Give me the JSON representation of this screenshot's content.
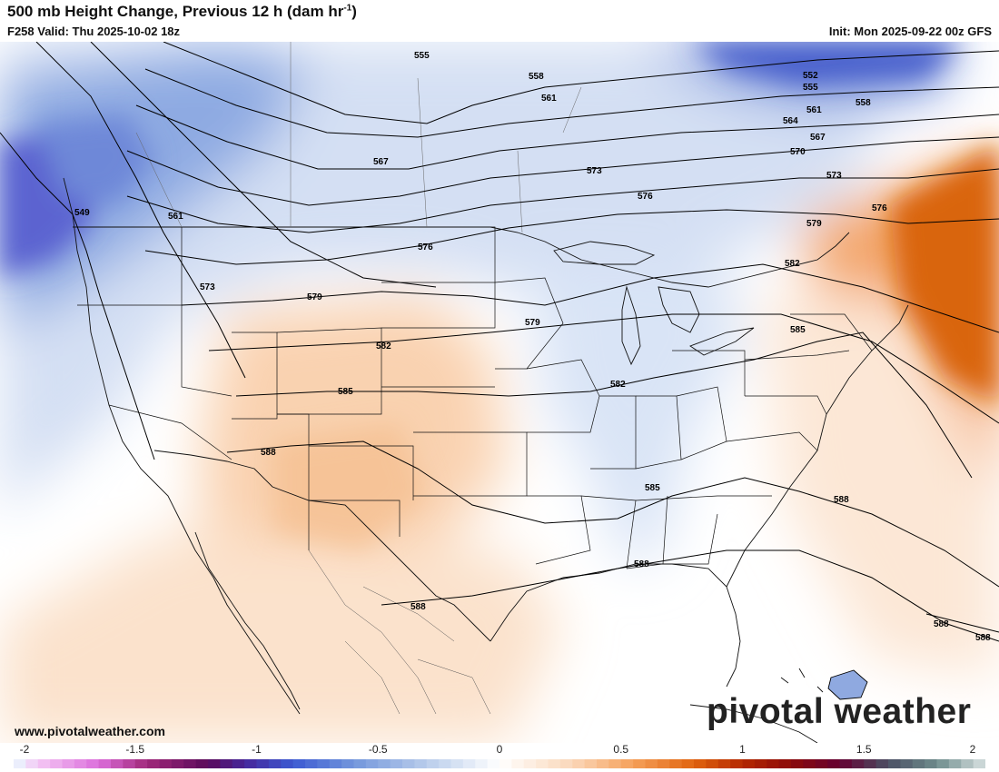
{
  "header": {
    "title_main": "500 mb Height Change, Previous 12 h (dam hr",
    "title_exp": "-1",
    "title_end": ")",
    "valid": "F258 Valid: Thu 2025-10-02 18z",
    "init": "Init: Mon 2025-09-22 00z GFS"
  },
  "footer": {
    "website": "www.pivotalweather.com",
    "brand": "pivotal weather"
  },
  "colorbar": {
    "min": -2,
    "max": 2,
    "tick_labels": [
      "-2",
      "-1.5",
      "-1",
      "-0.5",
      "0",
      "0.5",
      "1",
      "1.5",
      "2"
    ],
    "tick_values": [
      -2,
      -1.5,
      -1,
      -0.5,
      0,
      0.5,
      1,
      1.5,
      2
    ],
    "stops": [
      {
        "value": -2.0,
        "color": "#e8fbff"
      },
      {
        "value": -1.9,
        "color": "#f4c8f4"
      },
      {
        "value": -1.65,
        "color": "#dc6edc"
      },
      {
        "value": -1.45,
        "color": "#a0287a"
      },
      {
        "value": -1.2,
        "color": "#5a0a5a"
      },
      {
        "value": -1.05,
        "color": "#46259a"
      },
      {
        "value": -0.85,
        "color": "#3c5ad2"
      },
      {
        "value": -0.6,
        "color": "#7396dc"
      },
      {
        "value": -0.3,
        "color": "#b9cdeb"
      },
      {
        "value": 0.0,
        "color": "#ffffff"
      },
      {
        "value": 0.3,
        "color": "#fad7b9"
      },
      {
        "value": 0.55,
        "color": "#f5a05a"
      },
      {
        "value": 0.8,
        "color": "#e1640f"
      },
      {
        "value": 1.0,
        "color": "#b42800"
      },
      {
        "value": 1.2,
        "color": "#8c0a0a"
      },
      {
        "value": 1.4,
        "color": "#640032"
      },
      {
        "value": 1.6,
        "color": "#4b5064"
      },
      {
        "value": 1.8,
        "color": "#6e8c8c"
      },
      {
        "value": 2.0,
        "color": "#d7e1e1"
      }
    ]
  },
  "contours": {
    "labels": [
      "549",
      "552",
      "555",
      "558",
      "561",
      "564",
      "567",
      "570",
      "573",
      "576",
      "579",
      "582",
      "585",
      "588"
    ],
    "placed": [
      {
        "text": "549"
      },
      {
        "text": "561"
      },
      {
        "text": "573"
      },
      {
        "text": "555"
      },
      {
        "text": "558"
      },
      {
        "text": "561"
      },
      {
        "text": "567"
      },
      {
        "text": "573"
      },
      {
        "text": "576"
      },
      {
        "text": "576"
      },
      {
        "text": "579"
      },
      {
        "text": "579"
      },
      {
        "text": "582"
      },
      {
        "text": "585"
      },
      {
        "text": "588"
      },
      {
        "text": "552"
      },
      {
        "text": "555"
      },
      {
        "text": "561"
      },
      {
        "text": "564"
      },
      {
        "text": "558"
      },
      {
        "text": "567"
      },
      {
        "text": "570"
      },
      {
        "text": "573"
      },
      {
        "text": "576"
      },
      {
        "text": "579"
      },
      {
        "text": "582"
      },
      {
        "text": "585"
      },
      {
        "text": "582"
      },
      {
        "text": "585"
      },
      {
        "text": "588"
      },
      {
        "text": "588"
      },
      {
        "text": "588"
      },
      {
        "text": "588"
      },
      {
        "text": "588"
      }
    ]
  },
  "colors": {
    "negative": "#4b6fd6",
    "positive": "#e06a14",
    "contour": "#000000",
    "border": "#111111"
  }
}
